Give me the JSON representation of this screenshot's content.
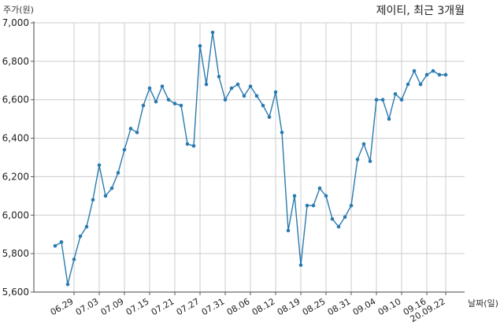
{
  "chart_data": {
    "type": "line",
    "title": "제이티, 최근 3개월",
    "xlabel": "날짜(일)",
    "ylabel": "주가(원)",
    "ylim": [
      5600,
      7000
    ],
    "yticks": [
      5600,
      5800,
      6000,
      6200,
      6400,
      6600,
      6800,
      7000
    ],
    "ytick_labels": [
      "5,600",
      "5,800",
      "6,000",
      "6,200",
      "6,400",
      "6,600",
      "6,800",
      "7,000"
    ],
    "xtick_labels": [
      "06.29",
      "07.03",
      "07.09",
      "07.15",
      "07.21",
      "07.27",
      "07.31",
      "08.06",
      "08.12",
      "08.19",
      "08.25",
      "08.31",
      "09.04",
      "09.10",
      "09.16",
      "20.09.22"
    ],
    "xtick_indices": [
      3,
      7,
      11,
      15,
      19,
      23,
      27,
      31,
      35,
      39,
      43,
      47,
      51,
      55,
      59,
      62
    ],
    "grid": true,
    "color": "#2a7ab0",
    "series": [
      {
        "values": [
          5840,
          5860,
          5640,
          5770,
          5890,
          5940,
          6080,
          6260,
          6100,
          6140,
          6220,
          6340,
          6450,
          6430,
          6570,
          6660,
          6590,
          6670,
          6600,
          6580,
          6570,
          6370,
          6360,
          6880,
          6680,
          6950,
          6720,
          6600,
          6660,
          6680,
          6620,
          6670,
          6620,
          6570,
          6510,
          6640,
          6430,
          5920,
          6100,
          5740,
          6050,
          6050,
          6140,
          6100,
          5980,
          5940,
          5990,
          6050,
          6290,
          6370,
          6280,
          6600,
          6600,
          6500,
          6630,
          6600,
          6680,
          6750,
          6680,
          6730,
          6750,
          6730,
          6730
        ]
      }
    ]
  }
}
